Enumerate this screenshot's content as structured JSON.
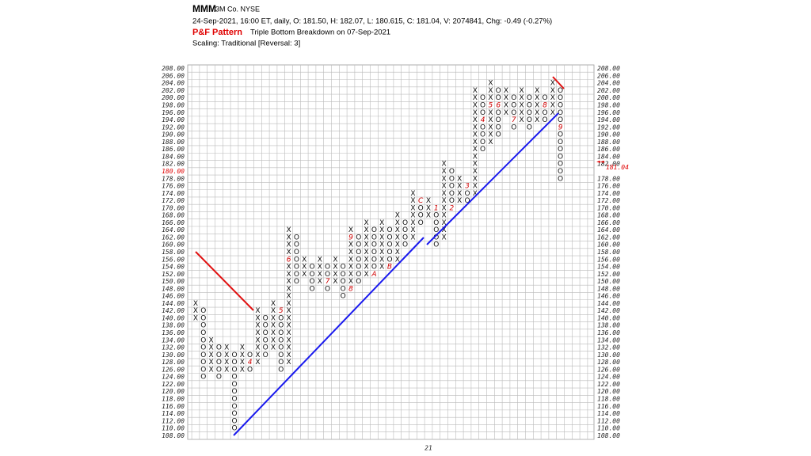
{
  "chart_data": {
    "type": "point-and-figure",
    "symbol": "MMM",
    "company": "3M Co. NYSE",
    "quote_line": "24-Sep-2021, 16:00 ET, daily, O: 181.50, H: 182.07, L: 180.615, C: 181.04, V: 2074841, Chg: -0.49 (-0.27%)",
    "pattern_title": "P&F Pattern",
    "pattern_text": "Triple Bottom Breakdown on 07-Sep-2021",
    "scaling": "Scaling: Traditional [Reversal: 3]",
    "box_size": 2,
    "ylim": [
      107,
      209
    ],
    "yticks": [
      {
        "value": 108,
        "label": "108.00"
      },
      {
        "value": 110,
        "label": "110.00"
      },
      {
        "value": 112,
        "label": "112.00"
      },
      {
        "value": 114,
        "label": "114.00"
      },
      {
        "value": 116,
        "label": "116.00"
      },
      {
        "value": 118,
        "label": "118.00"
      },
      {
        "value": 120,
        "label": "120.00"
      },
      {
        "value": 122,
        "label": "122.00"
      },
      {
        "value": 124,
        "label": "124.00"
      },
      {
        "value": 126,
        "label": "126.00"
      },
      {
        "value": 128,
        "label": "128.00"
      },
      {
        "value": 130,
        "label": "130.00"
      },
      {
        "value": 132,
        "label": "132.00"
      },
      {
        "value": 134,
        "label": "134.00"
      },
      {
        "value": 136,
        "label": "136.00"
      },
      {
        "value": 138,
        "label": "138.00"
      },
      {
        "value": 140,
        "label": "140.00"
      },
      {
        "value": 142,
        "label": "142.00"
      },
      {
        "value": 144,
        "label": "144.00"
      },
      {
        "value": 146,
        "label": "146.00"
      },
      {
        "value": 148,
        "label": "148.00"
      },
      {
        "value": 150,
        "label": "150.00"
      },
      {
        "value": 152,
        "label": "152.00"
      },
      {
        "value": 154,
        "label": "154.00"
      },
      {
        "value": 156,
        "label": "156.00"
      },
      {
        "value": 158,
        "label": "158.00"
      },
      {
        "value": 160,
        "label": "160.00"
      },
      {
        "value": 162,
        "label": "162.00"
      },
      {
        "value": 164,
        "label": "164.00"
      },
      {
        "value": 166,
        "label": "166.00"
      },
      {
        "value": 168,
        "label": "168.00"
      },
      {
        "value": 170,
        "label": "170.00"
      },
      {
        "value": 172,
        "label": "172.00"
      },
      {
        "value": 174,
        "label": "174.00"
      },
      {
        "value": 176,
        "label": "176.00"
      },
      {
        "value": 178,
        "label": "178.00"
      },
      {
        "value": 180,
        "label": "180.00"
      },
      {
        "value": 182,
        "label": "182.00"
      },
      {
        "value": 184,
        "label": "184.00"
      },
      {
        "value": 186,
        "label": "186.00"
      },
      {
        "value": 188,
        "label": "188.00"
      },
      {
        "value": 190,
        "label": "190.00"
      },
      {
        "value": 192,
        "label": "192.00"
      },
      {
        "value": 194,
        "label": "194.00"
      },
      {
        "value": 196,
        "label": "196.00"
      },
      {
        "value": 198,
        "label": "198.00"
      },
      {
        "value": 200,
        "label": "200.00"
      },
      {
        "value": 202,
        "label": "202.00"
      },
      {
        "value": 204,
        "label": "204.00"
      },
      {
        "value": 206,
        "label": "206.00"
      },
      {
        "value": 208,
        "label": "208.00"
      }
    ],
    "last_price": 181.04,
    "highlight_color": "#e00000",
    "year_label": "21",
    "year_column": 30,
    "columns": [
      {
        "type": "X",
        "low": 140,
        "high": 144
      },
      {
        "type": "O",
        "low": 124,
        "high": 142
      },
      {
        "type": "X",
        "low": 126,
        "high": 134
      },
      {
        "type": "O",
        "low": 124,
        "high": 132
      },
      {
        "type": "X",
        "low": 126,
        "high": 132
      },
      {
        "type": "O",
        "low": 110,
        "high": 130
      },
      {
        "type": "X",
        "low": 126,
        "high": 132
      },
      {
        "type": "O",
        "low": 126,
        "high": 130,
        "marks": [
          {
            "label": "4",
            "at": 128
          }
        ]
      },
      {
        "type": "X",
        "low": 128,
        "high": 142
      },
      {
        "type": "O",
        "low": 130,
        "high": 140
      },
      {
        "type": "X",
        "low": 132,
        "high": 144
      },
      {
        "type": "O",
        "low": 126,
        "high": 142,
        "marks": [
          {
            "label": "5",
            "at": 142
          }
        ]
      },
      {
        "type": "X",
        "low": 128,
        "high": 164,
        "marks": [
          {
            "label": "6",
            "at": 156
          }
        ]
      },
      {
        "type": "O",
        "low": 150,
        "high": 162
      },
      {
        "type": "X",
        "low": 152,
        "high": 156
      },
      {
        "type": "O",
        "low": 148,
        "high": 154
      },
      {
        "type": "X",
        "low": 150,
        "high": 156
      },
      {
        "type": "O",
        "low": 148,
        "high": 154,
        "marks": [
          {
            "label": "7",
            "at": 150
          }
        ]
      },
      {
        "type": "X",
        "low": 150,
        "high": 156
      },
      {
        "type": "O",
        "low": 146,
        "high": 154
      },
      {
        "type": "X",
        "low": 148,
        "high": 164,
        "marks": [
          {
            "label": "8",
            "at": 148
          },
          {
            "label": "9",
            "at": 162
          }
        ]
      },
      {
        "type": "O",
        "low": 150,
        "high": 162
      },
      {
        "type": "X",
        "low": 152,
        "high": 166
      },
      {
        "type": "O",
        "low": 152,
        "high": 164,
        "marks": [
          {
            "label": "A",
            "at": 152
          }
        ]
      },
      {
        "type": "X",
        "low": 154,
        "high": 166
      },
      {
        "type": "O",
        "low": 154,
        "high": 164,
        "marks": [
          {
            "label": "B",
            "at": 154
          }
        ]
      },
      {
        "type": "X",
        "low": 156,
        "high": 168
      },
      {
        "type": "O",
        "low": 160,
        "high": 166
      },
      {
        "type": "X",
        "low": 162,
        "high": 174
      },
      {
        "type": "O",
        "low": 166,
        "high": 172,
        "marks": [
          {
            "label": "C",
            "at": 172
          }
        ]
      },
      {
        "type": "X",
        "low": 168,
        "high": 172
      },
      {
        "type": "O",
        "low": 160,
        "high": 170,
        "marks": [
          {
            "label": "1",
            "at": 170
          }
        ]
      },
      {
        "type": "X",
        "low": 162,
        "high": 182
      },
      {
        "type": "O",
        "low": 170,
        "high": 180,
        "marks": [
          {
            "label": "2",
            "at": 170
          }
        ]
      },
      {
        "type": "X",
        "low": 172,
        "high": 178
      },
      {
        "type": "O",
        "low": 172,
        "high": 176,
        "marks": [
          {
            "label": "3",
            "at": 176
          }
        ]
      },
      {
        "type": "X",
        "low": 174,
        "high": 202
      },
      {
        "type": "O",
        "low": 186,
        "high": 200,
        "marks": [
          {
            "label": "4",
            "at": 194
          }
        ]
      },
      {
        "type": "X",
        "low": 188,
        "high": 204,
        "marks": [
          {
            "label": "5",
            "at": 198
          }
        ]
      },
      {
        "type": "O",
        "low": 190,
        "high": 202,
        "marks": [
          {
            "label": "6",
            "at": 198
          }
        ]
      },
      {
        "type": "X",
        "low": 196,
        "high": 202
      },
      {
        "type": "O",
        "low": 192,
        "high": 200,
        "marks": [
          {
            "label": "7",
            "at": 194
          }
        ]
      },
      {
        "type": "X",
        "low": 194,
        "high": 202
      },
      {
        "type": "O",
        "low": 192,
        "high": 200
      },
      {
        "type": "X",
        "low": 194,
        "high": 202
      },
      {
        "type": "O",
        "low": 194,
        "high": 200,
        "marks": [
          {
            "label": "8",
            "at": 198
          }
        ]
      },
      {
        "type": "X",
        "low": 196,
        "high": 204
      },
      {
        "type": "O",
        "low": 178,
        "high": 202,
        "marks": [
          {
            "label": "9",
            "at": 192
          }
        ]
      }
    ]
  }
}
